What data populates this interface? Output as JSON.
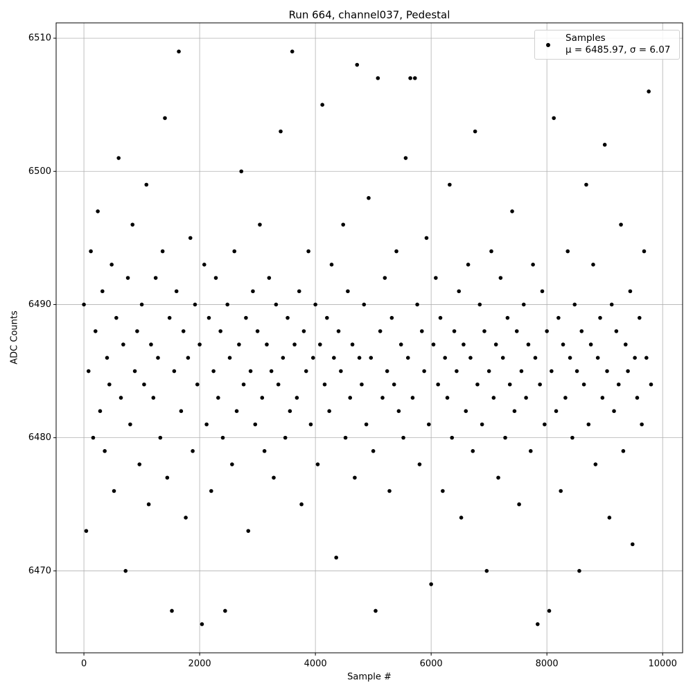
{
  "chart_data": {
    "type": "scatter",
    "title": "Run 664, channel037, Pedestal",
    "x_label": "Sample #",
    "y_label": "ADC Counts",
    "xlim": [
      -480,
      10345
    ],
    "ylim": [
      6463.85,
      6511.15
    ],
    "xticks": [
      0,
      2000,
      4000,
      6000,
      8000,
      10000
    ],
    "yticks": [
      6470,
      6480,
      6490,
      6500,
      6510
    ],
    "grid": true,
    "legend": "upper right",
    "x": [
      0,
      40,
      80,
      120,
      160,
      200,
      240,
      280,
      320,
      360,
      400,
      440,
      480,
      520,
      560,
      600,
      640,
      680,
      720,
      760,
      800,
      840,
      880,
      920,
      960,
      1000,
      1040,
      1080,
      1120,
      1160,
      1200,
      1240,
      1280,
      1320,
      1360,
      1400,
      1440,
      1480,
      1520,
      1560,
      1600,
      1640,
      1680,
      1720,
      1760,
      1800,
      1840,
      1880,
      1920,
      1960,
      2000,
      2040,
      2080,
      2120,
      2160,
      2200,
      2240,
      2280,
      2320,
      2360,
      2400,
      2440,
      2480,
      2520,
      2560,
      2600,
      2640,
      2680,
      2720,
      2760,
      2800,
      2840,
      2880,
      2920,
      2960,
      3000,
      3040,
      3080,
      3120,
      3160,
      3200,
      3240,
      3280,
      3320,
      3360,
      3400,
      3440,
      3480,
      3520,
      3560,
      3600,
      3640,
      3680,
      3720,
      3760,
      3800,
      3840,
      3880,
      3920,
      3960,
      4000,
      4040,
      4080,
      4120,
      4160,
      4200,
      4240,
      4280,
      4320,
      4360,
      4400,
      4440,
      4480,
      4520,
      4560,
      4600,
      4640,
      4680,
      4720,
      4760,
      4800,
      4840,
      4880,
      4920,
      4960,
      5000,
      5040,
      5080,
      5120,
      5160,
      5200,
      5240,
      5280,
      5320,
      5360,
      5400,
      5440,
      5480,
      5520,
      5560,
      5600,
      5640,
      5680,
      5720,
      5760,
      5800,
      5840,
      5880,
      5920,
      5960,
      6000,
      6040,
      6080,
      6120,
      6160,
      6200,
      6240,
      6280,
      6320,
      6360,
      6400,
      6440,
      6480,
      6520,
      6560,
      6600,
      6640,
      6680,
      6720,
      6760,
      6800,
      6840,
      6880,
      6920,
      6960,
      7000,
      7040,
      7080,
      7120,
      7160,
      7200,
      7240,
      7280,
      7320,
      7360,
      7400,
      7440,
      7480,
      7520,
      7560,
      7600,
      7640,
      7680,
      7720,
      7760,
      7800,
      7840,
      7880,
      7920,
      7960,
      8000,
      8040,
      8080,
      8120,
      8160,
      8200,
      8240,
      8280,
      8320,
      8360,
      8400,
      8440,
      8480,
      8520,
      8560,
      8600,
      8640,
      8680,
      8720,
      8760,
      8800,
      8840,
      8880,
      8920,
      8960,
      9000,
      9040,
      9080,
      9120,
      9160,
      9200,
      9240,
      9280,
      9320,
      9360,
      9400,
      9440,
      9480,
      9520,
      9560,
      9600,
      9640,
      9680,
      9720,
      9760,
      9800
    ],
    "series": [
      {
        "name": "Samples\nμ = 6485.97, σ = 6.07",
        "color": "#000000",
        "values": [
          6490,
          6473,
          6485,
          6494,
          6480,
          6488,
          6497,
          6482,
          6491,
          6479,
          6486,
          6484,
          6493,
          6476,
          6489,
          6501,
          6483,
          6487,
          6470,
          6492,
          6481,
          6496,
          6485,
          6488,
          6478,
          6490,
          6484,
          6499,
          6475,
          6487,
          6483,
          6492,
          6486,
          6480,
          6494,
          6504,
          6477,
          6489,
          6467,
          6485,
          6491,
          6509,
          6482,
          6488,
          6474,
          6486,
          6495,
          6479,
          6490,
          6484,
          6487,
          6466,
          6493,
          6481,
          6489,
          6476,
          6485,
          6492,
          6483,
          6488,
          6480,
          6467,
          6490,
          6486,
          6478,
          6494,
          6482,
          6487,
          6500,
          6484,
          6489,
          6473,
          6485,
          6491,
          6481,
          6488,
          6496,
          6483,
          6479,
          6487,
          6492,
          6485,
          6477,
          6490,
          6484,
          6503,
          6486,
          6480,
          6489,
          6482,
          6509,
          6487,
          6483,
          6491,
          6475,
          6488,
          6485,
          6494,
          6481,
          6486,
          6490,
          6478,
          6487,
          6505,
          6484,
          6489,
          6482,
          6493,
          6486,
          6471,
          6488,
          6485,
          6496,
          6480,
          6491,
          6483,
          6487,
          6477,
          6508,
          6486,
          6484,
          6490,
          6481,
          6498,
          6486,
          6479,
          6467,
          6507,
          6488,
          6483,
          6492,
          6485,
          6476,
          6489,
          6484,
          6494,
          6482,
          6487,
          6480,
          6501,
          6486,
          6507,
          6483,
          6507,
          6490,
          6478,
          6488,
          6485,
          6495,
          6481,
          6469,
          6487,
          6492,
          6484,
          6489,
          6476,
          6486,
          6483,
          6499,
          6480,
          6488,
          6485,
          6491,
          6474,
          6487,
          6482,
          6493,
          6486,
          6479,
          6503,
          6484,
          6490,
          6481,
          6488,
          6470,
          6485,
          6494,
          6483,
          6487,
          6477,
          6492,
          6486,
          6480,
          6489,
          6484,
          6497,
          6482,
          6488,
          6475,
          6485,
          6490,
          6483,
          6487,
          6479,
          6493,
          6486,
          6466,
          6484,
          6491,
          6481,
          6488,
          6467,
          6485,
          6504,
          6482,
          6489,
          6476,
          6487,
          6483,
          6494,
          6486,
          6480,
          6490,
          6485,
          6470,
          6488,
          6484,
          6499,
          6481,
          6487,
          6493,
          6478,
          6486,
          6489,
          6483,
          6502,
          6485,
          6474,
          6490,
          6482,
          6488,
          6484,
          6496,
          6479,
          6487,
          6485,
          6491,
          6472,
          6486,
          6483,
          6489,
          6481,
          6494,
          6486,
          6506,
          6484
        ]
      }
    ]
  }
}
